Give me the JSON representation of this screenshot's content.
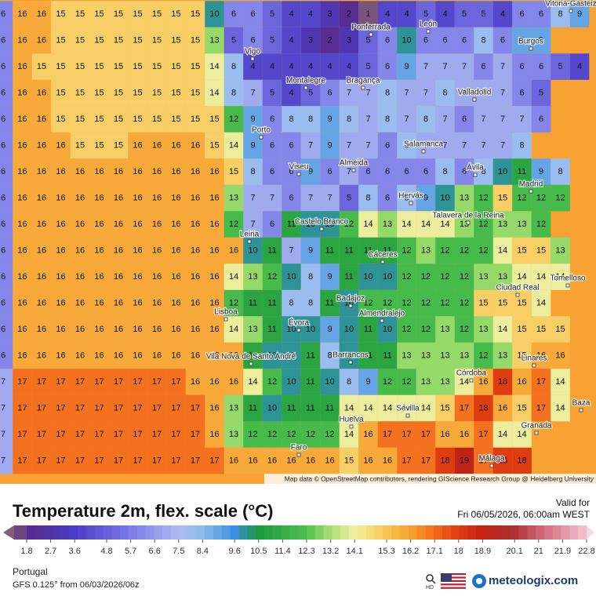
{
  "map": {
    "attribution": "Map data © OpenStreetMap contributors, rendering GIScience Research Group @ Heidelberg University",
    "grid": [
      [
        6,
        16,
        16,
        15,
        15,
        15,
        15,
        15,
        15,
        15,
        15,
        10,
        6,
        6,
        5,
        4,
        4,
        3,
        2,
        1,
        4,
        4,
        5,
        4,
        5,
        5,
        4,
        6,
        6,
        8,
        9
      ],
      [
        6,
        16,
        16,
        15,
        15,
        15,
        15,
        15,
        15,
        15,
        15,
        13,
        5,
        6,
        5,
        4,
        3,
        2,
        3,
        5,
        6,
        10,
        6,
        6,
        6,
        8,
        6,
        9,
        9
      ],
      [
        6,
        16,
        15,
        15,
        15,
        15,
        15,
        15,
        15,
        15,
        15,
        14,
        8,
        4,
        4,
        4,
        4,
        4,
        4,
        5,
        6,
        9,
        7,
        7,
        7,
        6,
        7,
        6,
        6,
        5,
        4
      ],
      [
        6,
        16,
        16,
        15,
        15,
        15,
        15,
        15,
        15,
        15,
        15,
        14,
        8,
        7,
        5,
        4,
        5,
        6,
        7,
        7,
        8,
        7,
        7,
        8,
        7,
        7,
        7,
        6,
        5
      ],
      [
        6,
        16,
        16,
        15,
        15,
        15,
        15,
        15,
        15,
        15,
        15,
        15,
        12,
        9,
        6,
        8,
        8,
        9,
        8,
        7,
        8,
        7,
        8,
        7,
        6,
        7,
        7,
        7,
        6
      ],
      [
        6,
        16,
        16,
        16,
        15,
        15,
        15,
        16,
        16,
        16,
        16,
        15,
        14,
        9,
        6,
        6,
        7,
        9,
        7,
        7,
        6,
        8,
        7,
        7,
        7,
        7,
        7,
        8
      ],
      [
        6,
        16,
        16,
        16,
        16,
        16,
        16,
        16,
        16,
        16,
        16,
        16,
        15,
        8,
        6,
        6,
        9,
        6,
        7,
        6,
        6,
        6,
        6,
        8,
        6,
        8,
        10,
        11,
        9,
        8
      ],
      [
        6,
        16,
        16,
        16,
        16,
        16,
        16,
        16,
        16,
        16,
        16,
        16,
        13,
        7,
        7,
        6,
        7,
        7,
        5,
        8,
        6,
        8,
        9,
        10,
        13,
        12,
        15,
        12,
        12,
        12
      ],
      [
        6,
        16,
        16,
        16,
        16,
        16,
        16,
        16,
        16,
        16,
        16,
        16,
        12,
        7,
        6,
        11,
        10,
        10,
        12,
        14,
        13,
        14,
        14,
        14,
        13,
        12,
        13,
        13,
        12
      ],
      [
        6,
        16,
        16,
        16,
        16,
        16,
        16,
        16,
        16,
        16,
        16,
        16,
        16,
        10,
        11,
        7,
        9,
        11,
        11,
        11,
        11,
        12,
        13,
        12,
        12,
        12,
        14,
        15,
        15,
        13
      ],
      [
        6,
        16,
        16,
        16,
        16,
        16,
        16,
        16,
        16,
        16,
        16,
        16,
        14,
        13,
        12,
        10,
        8,
        9,
        11,
        10,
        10,
        12,
        12,
        12,
        12,
        13,
        13,
        14,
        14,
        14
      ],
      [
        6,
        16,
        16,
        16,
        16,
        16,
        16,
        16,
        16,
        16,
        16,
        16,
        12,
        11,
        11,
        8,
        8,
        11,
        10,
        12,
        12,
        12,
        12,
        12,
        12,
        15,
        15,
        15,
        14
      ],
      [
        6,
        16,
        16,
        16,
        16,
        16,
        16,
        16,
        16,
        16,
        16,
        16,
        14,
        13,
        11,
        10,
        10,
        9,
        10,
        11,
        10,
        12,
        12,
        13,
        12,
        13,
        14,
        15,
        15,
        15
      ],
      [
        6,
        16,
        16,
        16,
        16,
        16,
        16,
        16,
        16,
        16,
        16,
        16,
        16,
        11,
        10,
        10,
        11,
        8,
        10,
        11,
        11,
        13,
        13,
        13,
        13,
        12,
        13,
        15,
        16,
        16
      ],
      [
        7,
        17,
        17,
        17,
        17,
        17,
        17,
        17,
        17,
        17,
        16,
        16,
        16,
        14,
        12,
        10,
        11,
        10,
        8,
        9,
        12,
        12,
        13,
        13,
        14,
        16,
        18,
        16,
        17,
        14
      ],
      [
        7,
        17,
        17,
        17,
        17,
        17,
        17,
        17,
        17,
        17,
        17,
        16,
        13,
        11,
        10,
        11,
        11,
        11,
        14,
        14,
        14,
        14,
        14,
        15,
        17,
        18,
        16,
        15,
        17,
        14
      ],
      [
        7,
        17,
        17,
        17,
        17,
        17,
        17,
        17,
        17,
        17,
        17,
        16,
        13,
        12,
        12,
        12,
        12,
        12,
        14,
        16,
        17,
        17,
        17,
        16,
        16,
        17,
        14,
        14
      ],
      [
        7,
        17,
        17,
        17,
        17,
        17,
        17,
        17,
        17,
        17,
        17,
        17,
        16,
        16,
        16,
        16,
        16,
        16,
        15,
        16,
        16,
        17,
        17,
        18,
        19,
        17,
        18,
        18
      ]
    ],
    "cities": [
      "Vigo",
      "Ponferrada",
      "León",
      "Burgos",
      "Vitoria-Gasteiz",
      "Montalegre",
      "Bragança",
      "Valladolid",
      "Porto",
      "Salamanca",
      "Viseu",
      "Almeida",
      "Ávila",
      "Madrid",
      "Hervás",
      "Castelo Branco",
      "Talavera de la Reina",
      "Leiria",
      "Cáceres",
      "Ciudad Real",
      "Tomelloso",
      "Badajoz",
      "Lisboa",
      "Almendralejo",
      "Évora",
      "Vila Nova de Santo André",
      "Barrancos",
      "Linares",
      "Córdoba",
      "Sevilla",
      "Baza",
      "Granada",
      "Huelva",
      "Faro",
      "Málaga"
    ]
  },
  "legend": {
    "title": "Temperature 2m, flex. scale (°C)",
    "valid_label": "Valid for",
    "valid_time": "Fri 06/05/2026, 06:00am WEST",
    "scale_ticks": [
      1.8,
      2.7,
      3.6,
      4.8,
      5.7,
      6.6,
      7.5,
      8.4,
      9.6,
      10.5,
      11.4,
      12.3,
      13.2,
      14.1,
      15.3,
      16.2,
      17.1,
      18,
      18.9,
      20.1,
      21,
      21.9,
      22.8
    ]
  },
  "footer": {
    "region": "Portugal",
    "model": "GFS 0.125° from  06/03/2026/06z",
    "hd": "HD",
    "brand": "meteologix.com"
  }
}
